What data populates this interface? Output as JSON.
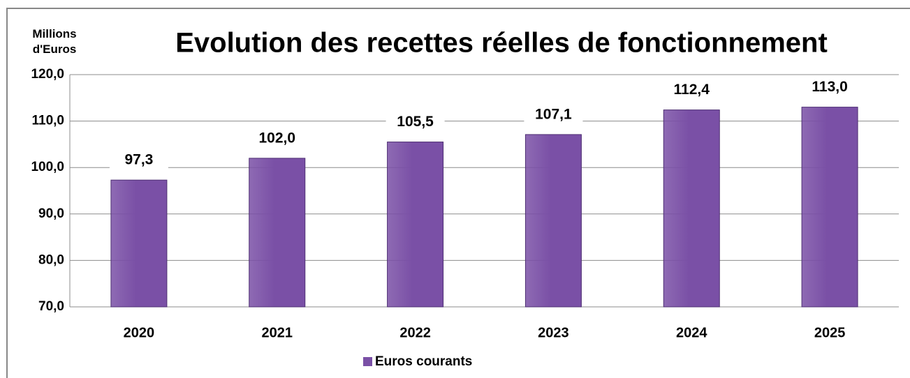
{
  "chart_data": {
    "type": "bar",
    "title": "Evolution  des recettes réelles de fonctionnement",
    "y_label": "Millions d'Euros",
    "categories": [
      "2020",
      "2021",
      "2022",
      "2023",
      "2024",
      "2025"
    ],
    "series": [
      {
        "name": "Euros courants",
        "color": "#7a50a6",
        "values": [
          97.3,
          102.0,
          105.5,
          107.1,
          112.4,
          113.0
        ],
        "value_labels": [
          "97,3",
          "102,0",
          "105,5",
          "107,1",
          "112,4",
          "113,0"
        ]
      }
    ],
    "ylim": [
      70,
      120
    ],
    "yticks": [
      {
        "value": 70,
        "label": "70,0"
      },
      {
        "value": 80,
        "label": "80,0"
      },
      {
        "value": 90,
        "label": "90,0"
      },
      {
        "value": 100,
        "label": "100,0"
      },
      {
        "value": 110,
        "label": "110,0"
      },
      {
        "value": 120,
        "label": "120,0"
      }
    ],
    "grid": true,
    "legend": "bottom"
  }
}
